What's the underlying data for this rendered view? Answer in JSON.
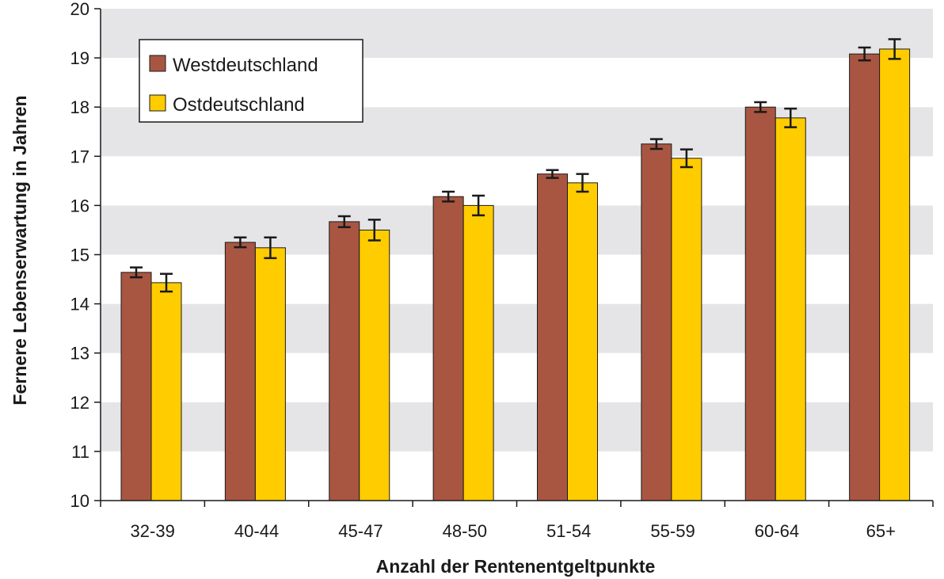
{
  "chart_data": {
    "type": "bar",
    "title": "",
    "xlabel": "Anzahl der Rentenentgeltpunkte",
    "ylabel": "Fernere Lebenserwartung in Jahren",
    "ylim": [
      10,
      20
    ],
    "yticks": [
      "10",
      "11",
      "12",
      "13",
      "14",
      "15",
      "16",
      "17",
      "18",
      "19",
      "20"
    ],
    "grid": "alternating horizontal bands",
    "legend_position": "top-left",
    "categories": [
      "32-39",
      "40-44",
      "45-47",
      "48-50",
      "51-54",
      "55-59",
      "60-64",
      "65+"
    ],
    "series": [
      {
        "name": "Westdeutschland",
        "color": "#A85642",
        "values": [
          14.64,
          15.25,
          15.67,
          16.18,
          16.64,
          17.25,
          18.0,
          19.08
        ],
        "error": [
          0.1,
          0.1,
          0.11,
          0.1,
          0.08,
          0.1,
          0.1,
          0.13
        ]
      },
      {
        "name": "Ostdeutschland",
        "color": "#FFCC00",
        "values": [
          14.43,
          15.14,
          15.5,
          16.0,
          16.46,
          16.96,
          17.78,
          19.18
        ],
        "error": [
          0.18,
          0.21,
          0.21,
          0.2,
          0.18,
          0.18,
          0.19,
          0.2
        ]
      }
    ]
  }
}
